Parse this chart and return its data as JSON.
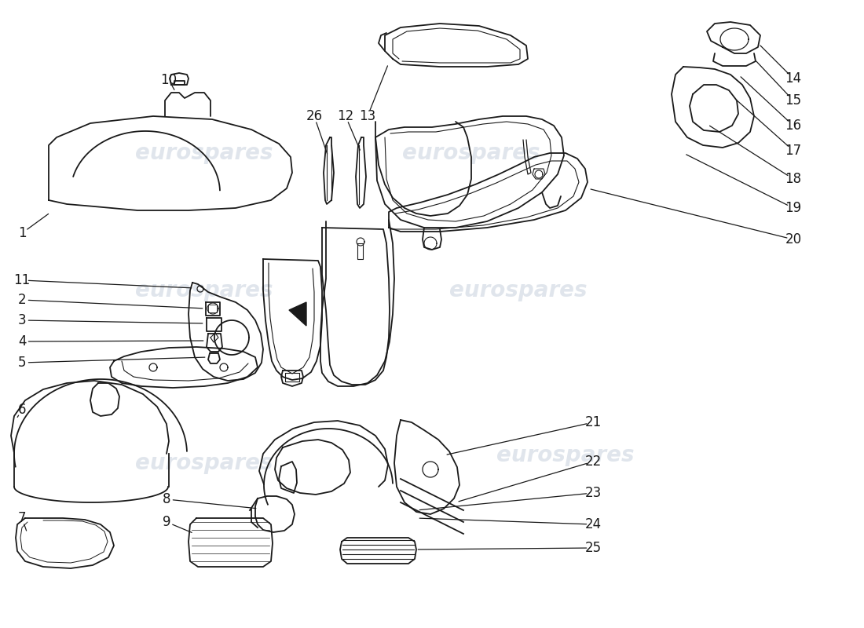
{
  "background_color": "#ffffff",
  "line_color": "#1a1a1a",
  "watermark_color": "#ccd5e0",
  "watermark_text": "eurospares",
  "lw": 1.3
}
